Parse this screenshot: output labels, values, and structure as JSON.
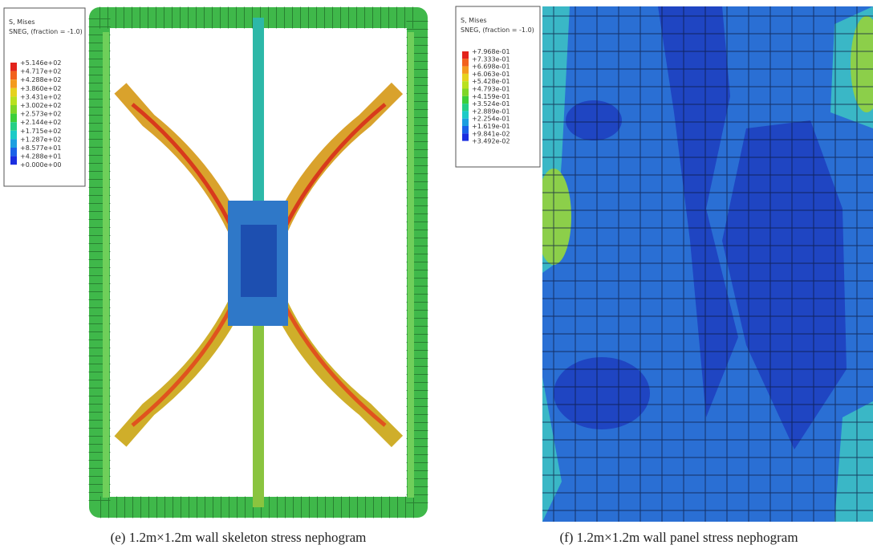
{
  "panels": [
    {
      "legend": {
        "title": "S, Mises",
        "subtitle": "SNEG, (fraction = -1.0)",
        "levels": [
          "+5.146e+02",
          "+4.717e+02",
          "+4.288e+02",
          "+3.860e+02",
          "+3.431e+02",
          "+3.002e+02",
          "+2.573e+02",
          "+2.144e+02",
          "+1.715e+02",
          "+1.287e+02",
          "+8.577e+01",
          "+4.288e+01",
          "+0.000e+00"
        ]
      },
      "caption": "(e) 1.2m×1.2m wall skeleton stress nephogram"
    },
    {
      "legend": {
        "title": "S, Mises",
        "subtitle": "SNEG, (fraction = -1.0)",
        "levels": [
          "+7.968e-01",
          "+7.333e-01",
          "+6.698e-01",
          "+6.063e-01",
          "+5.428e-01",
          "+4.793e-01",
          "+4.159e-01",
          "+3.524e-01",
          "+2.889e-01",
          "+2.254e-01",
          "+1.619e-01",
          "+9.841e-02",
          "+3.492e-02"
        ]
      },
      "caption": "(f) 1.2m×1.2m wall panel stress nephogram"
    }
  ]
}
